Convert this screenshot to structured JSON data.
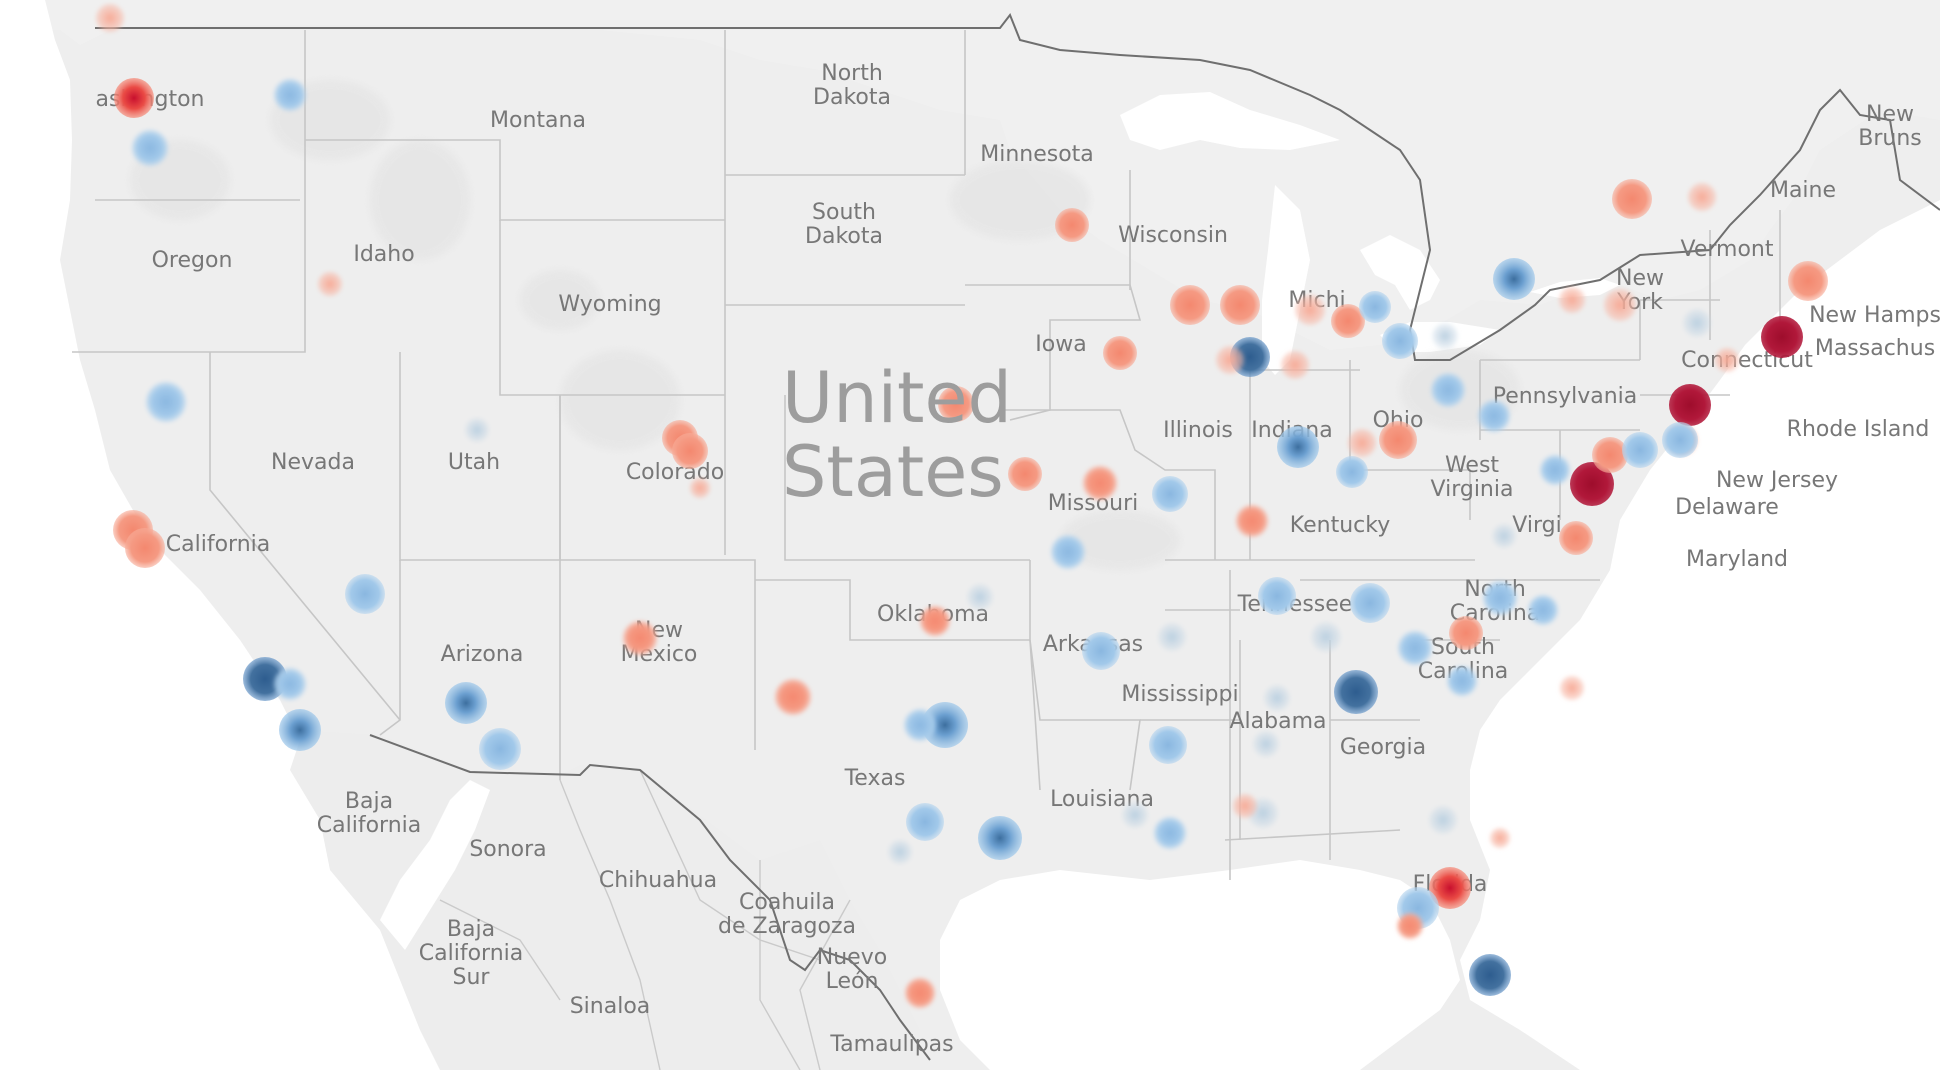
{
  "map": {
    "country_label": [
      "United",
      "States"
    ],
    "colors": {
      "land": "#e9e9e9",
      "neighbor": "#efefef",
      "water": "#ffffff",
      "state_border": "#c4c4c4",
      "country_border": "#6f6f6f",
      "label": "#777777",
      "red": "#b1183a",
      "red_mid": "#e8413f",
      "salmon": "#f2937a",
      "blue": "#3f6e9f",
      "blue_mid": "#6d9fcf",
      "light_blue": "#9ec6e7"
    },
    "region_labels": [
      {
        "id": "washington",
        "lines": [
          "ashington"
        ]
      },
      {
        "id": "montana",
        "lines": [
          "Montana"
        ]
      },
      {
        "id": "north-dakota",
        "lines": [
          "North",
          "Dakota"
        ]
      },
      {
        "id": "minnesota",
        "lines": [
          "Minnesota"
        ]
      },
      {
        "id": "oregon",
        "lines": [
          "Oregon"
        ]
      },
      {
        "id": "idaho",
        "lines": [
          "Idaho"
        ]
      },
      {
        "id": "south-dakota",
        "lines": [
          "South",
          "Dakota"
        ]
      },
      {
        "id": "wyoming",
        "lines": [
          "Wyoming"
        ]
      },
      {
        "id": "wisconsin",
        "lines": [
          "Wisconsin"
        ]
      },
      {
        "id": "iowa",
        "lines": [
          "Iowa"
        ]
      },
      {
        "id": "nevada",
        "lines": [
          "Nevada"
        ]
      },
      {
        "id": "utah",
        "lines": [
          "Utah"
        ]
      },
      {
        "id": "colorado",
        "lines": [
          "Colorado"
        ]
      },
      {
        "id": "illinois",
        "lines": [
          "Illinois"
        ]
      },
      {
        "id": "indiana",
        "lines": [
          "Indiana"
        ]
      },
      {
        "id": "ohio",
        "lines": [
          "Ohio"
        ]
      },
      {
        "id": "michigan",
        "lines": [
          "Michi"
        ]
      },
      {
        "id": "pennsylvania",
        "lines": [
          "Pennsylvania"
        ]
      },
      {
        "id": "new-york",
        "lines": [
          "New",
          "York"
        ]
      },
      {
        "id": "vermont",
        "lines": [
          "Vermont"
        ]
      },
      {
        "id": "maine",
        "lines": [
          "Maine"
        ]
      },
      {
        "id": "new-brunswick",
        "lines": [
          "New",
          "Bruns"
        ]
      },
      {
        "id": "new-hampshire",
        "lines": [
          "New Hamps"
        ]
      },
      {
        "id": "massachusetts",
        "lines": [
          "Massachus"
        ]
      },
      {
        "id": "connecticut",
        "lines": [
          "Connecticut"
        ]
      },
      {
        "id": "rhode-island",
        "lines": [
          "Rhode Island"
        ]
      },
      {
        "id": "new-jersey",
        "lines": [
          "New Jersey"
        ]
      },
      {
        "id": "delaware",
        "lines": [
          "Delaware"
        ]
      },
      {
        "id": "maryland",
        "lines": [
          "Maryland"
        ]
      },
      {
        "id": "california",
        "lines": [
          "California"
        ]
      },
      {
        "id": "missouri",
        "lines": [
          "Missouri"
        ]
      },
      {
        "id": "kentucky",
        "lines": [
          "Kentucky"
        ]
      },
      {
        "id": "west-virginia",
        "lines": [
          "West",
          "Virginia"
        ]
      },
      {
        "id": "virginia",
        "lines": [
          "Virgi"
        ]
      },
      {
        "id": "oklahoma",
        "lines": [
          "Oklahoma"
        ]
      },
      {
        "id": "tennessee",
        "lines": [
          "Tennessee"
        ]
      },
      {
        "id": "north-carolina",
        "lines": [
          "North",
          "Carolina"
        ]
      },
      {
        "id": "arkansas",
        "lines": [
          "Arkansas"
        ]
      },
      {
        "id": "arizona",
        "lines": [
          "Arizona"
        ]
      },
      {
        "id": "new-mexico",
        "lines": [
          "New",
          "Mexico"
        ]
      },
      {
        "id": "south-carolina",
        "lines": [
          "South",
          "Carolina"
        ]
      },
      {
        "id": "mississippi",
        "lines": [
          "Mississippi"
        ]
      },
      {
        "id": "alabama",
        "lines": [
          "Alabama"
        ]
      },
      {
        "id": "georgia",
        "lines": [
          "Georgia"
        ]
      },
      {
        "id": "texas",
        "lines": [
          "Texas"
        ]
      },
      {
        "id": "louisiana",
        "lines": [
          "Louisiana"
        ]
      },
      {
        "id": "florida",
        "lines": [
          "Florida"
        ]
      },
      {
        "id": "baja-california",
        "lines": [
          "Baja",
          "California"
        ]
      },
      {
        "id": "sonora",
        "lines": [
          "Sonora"
        ]
      },
      {
        "id": "chihuahua",
        "lines": [
          "Chihuahua"
        ]
      },
      {
        "id": "coahuila",
        "lines": [
          "Coahuila",
          "de Zaragoza"
        ]
      },
      {
        "id": "baja-california-sur",
        "lines": [
          "Baja",
          "California",
          "Sur"
        ]
      },
      {
        "id": "nuevo-leon",
        "lines": [
          "Nuevo",
          "León"
        ]
      },
      {
        "id": "sinaloa",
        "lines": [
          "Sinaloa"
        ]
      },
      {
        "id": "tamaulipas",
        "lines": [
          "Tamaulipas"
        ]
      }
    ]
  }
}
